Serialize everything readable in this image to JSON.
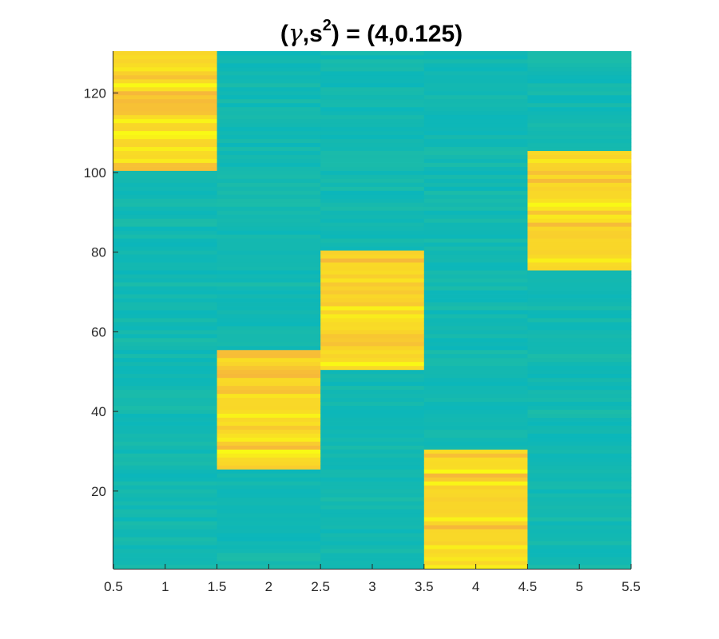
{
  "chart_data": {
    "type": "heatmap",
    "title": "(γ,s²) = (4,0.125)",
    "title_parts": {
      "open": "(",
      "gamma": "γ",
      "mid": ",s",
      "sup": "2",
      "close": ") = (4,0.125)"
    },
    "xlabel": "",
    "ylabel": "",
    "xlim": [
      0.5,
      5.5
    ],
    "ylim": [
      0.5,
      130.5
    ],
    "x_ticks": [
      "0.5",
      "1",
      "1.5",
      "2",
      "2.5",
      "3",
      "3.5",
      "4",
      "4.5",
      "5",
      "5.5"
    ],
    "y_ticks": [
      "20",
      "40",
      "60",
      "80",
      "100",
      "120"
    ],
    "columns": [
      1,
      2,
      3,
      4,
      5
    ],
    "rows": 130,
    "high_value_blocks": [
      {
        "column": 1,
        "row_start": 101,
        "row_end": 130
      },
      {
        "column": 2,
        "row_start": 26,
        "row_end": 55
      },
      {
        "column": 3,
        "row_start": 51,
        "row_end": 80
      },
      {
        "column": 4,
        "row_start": 1,
        "row_end": 30
      },
      {
        "column": 5,
        "row_start": 76,
        "row_end": 105
      }
    ],
    "colormap": "parula",
    "colors": {
      "low": "#14b8b0",
      "high": "#f9d12c"
    },
    "grid": false,
    "legend": "none"
  }
}
